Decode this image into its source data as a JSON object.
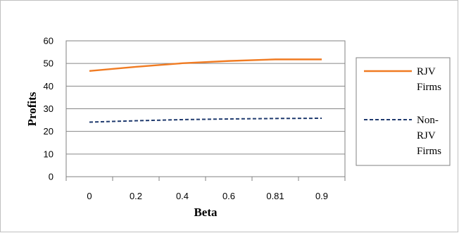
{
  "chart_data": {
    "type": "line",
    "categories": [
      "0",
      "0.2",
      "0.4",
      "0.6",
      "0.81",
      "0.9"
    ],
    "series": [
      {
        "name": "RJV Firms",
        "values": [
          46.7,
          48.5,
          50.1,
          51.1,
          51.8,
          51.8
        ],
        "color": "#f07b22",
        "dash": "solid"
      },
      {
        "name": "Non-RJV Firms",
        "values": [
          24.1,
          24.7,
          25.2,
          25.5,
          25.7,
          25.8
        ],
        "color": "#1f3a6e",
        "dash": "dashed"
      }
    ],
    "ylim": [
      0,
      60
    ],
    "yticks": [
      "0",
      "10",
      "20",
      "30",
      "40",
      "50",
      "60"
    ],
    "xlabel": "Beta",
    "ylabel": "Profits",
    "legend_lines": [
      [
        "RJV",
        "Firms"
      ],
      [
        "Non-",
        "RJV",
        "Firms"
      ]
    ],
    "legend_position": "right",
    "grid": "horizontal"
  }
}
